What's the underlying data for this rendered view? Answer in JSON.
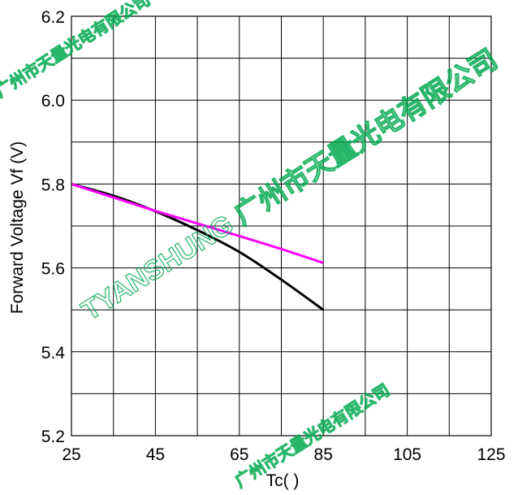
{
  "chart_data": {
    "type": "line",
    "xlabel": "Tc(   )",
    "ylabel": "Forward  Voltage  Vf  (V)",
    "xlim": [
      25,
      125
    ],
    "ylim": [
      5.2,
      6.2
    ],
    "x_ticks": [
      25,
      45,
      65,
      85,
      105,
      125
    ],
    "y_ticks": [
      5.2,
      5.4,
      5.6,
      5.8,
      6.0,
      6.2
    ],
    "y_tick_labels": [
      "5.2",
      "5.4",
      "5.6",
      "5.8",
      "6.0",
      "6.2"
    ],
    "grid": true,
    "series": [
      {
        "color": "#000000",
        "x": [
          25,
          35,
          45,
          55,
          65,
          75,
          85
        ],
        "y": [
          5.8,
          5.772,
          5.735,
          5.69,
          5.638,
          5.572,
          5.5
        ]
      },
      {
        "color": "#ff00ff",
        "x": [
          25,
          35,
          45,
          55,
          65,
          75,
          85
        ],
        "y": [
          5.8,
          5.768,
          5.736,
          5.706,
          5.676,
          5.645,
          5.612
        ]
      }
    ]
  },
  "watermark": {
    "text_main": "TYANSHUNG 广州市天量光电有限公司",
    "text_small": "广州市天量光电有限公司",
    "color": "#00a94f"
  }
}
